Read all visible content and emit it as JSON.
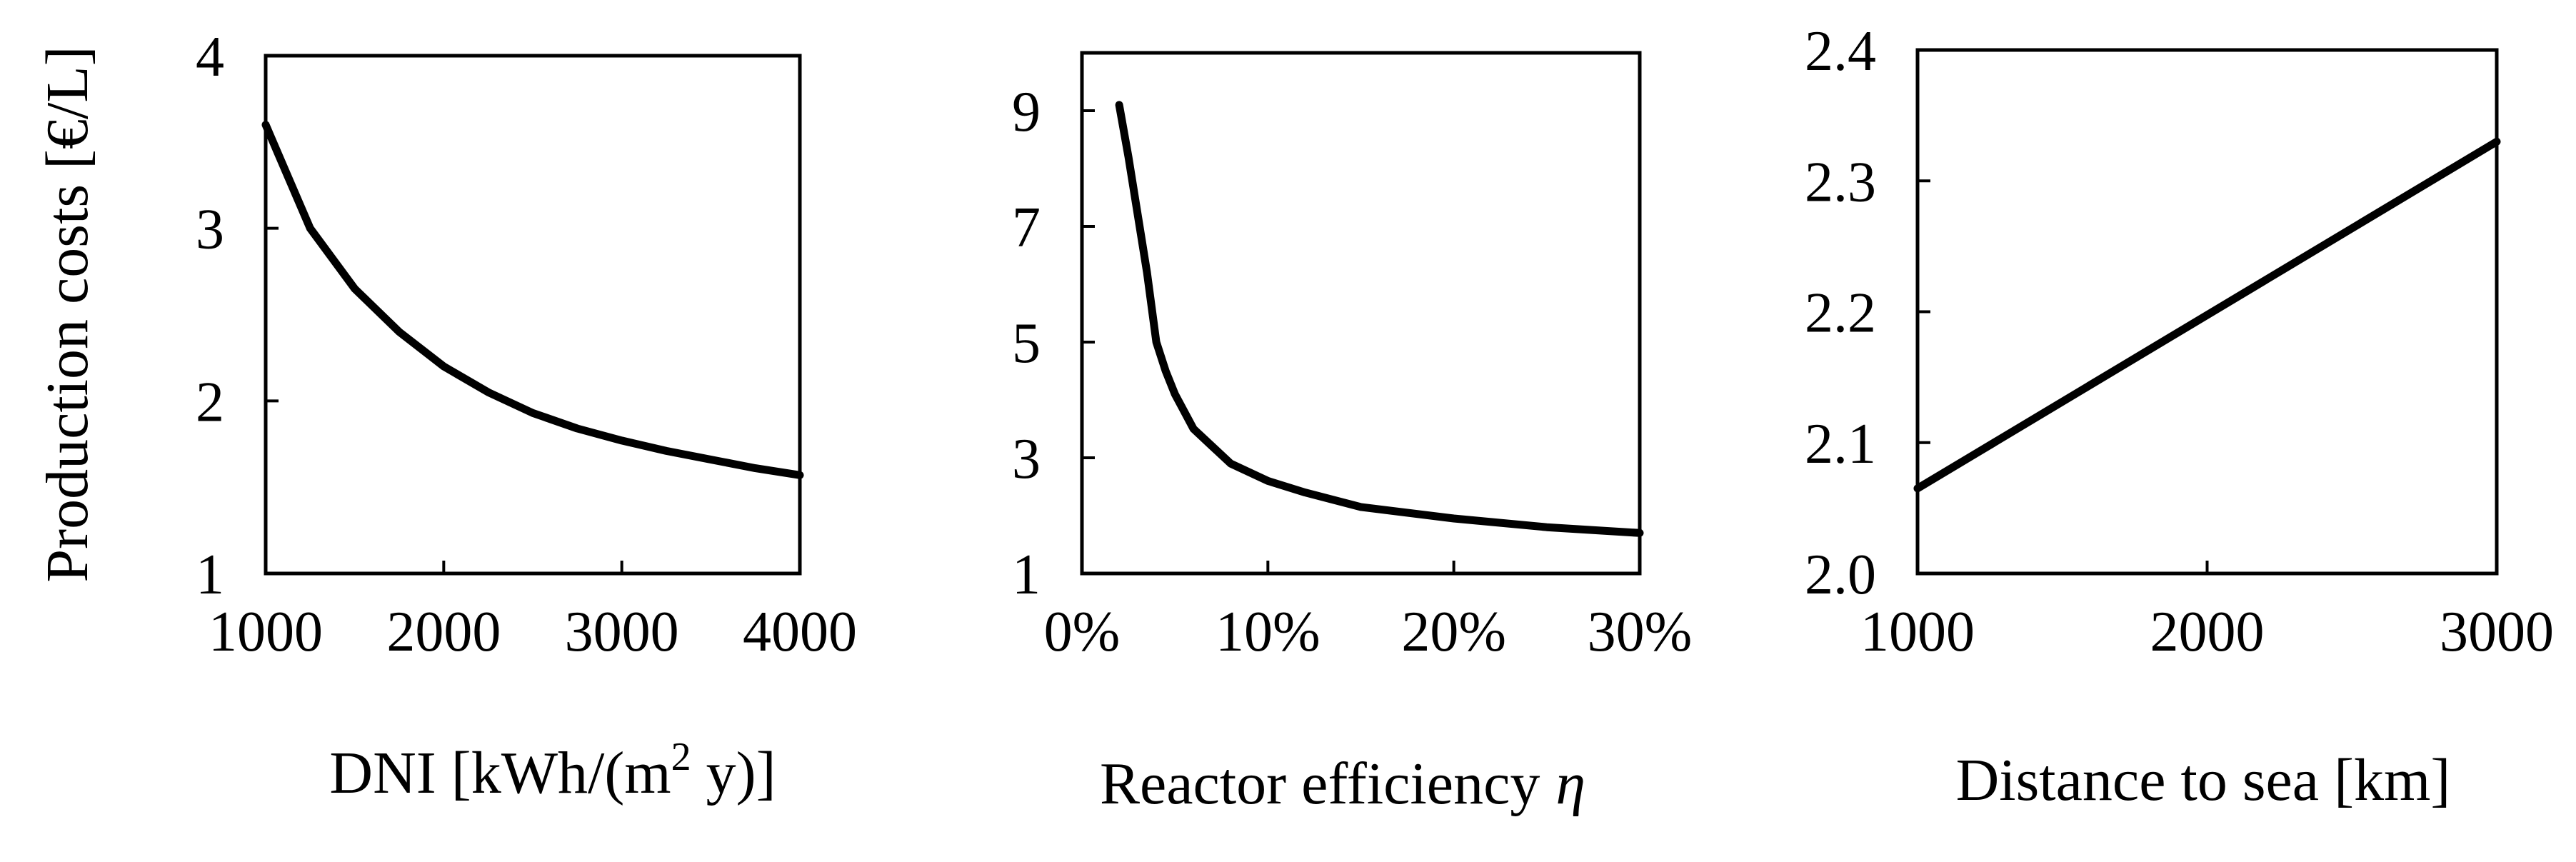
{
  "chart_data": [
    {
      "type": "line",
      "xlabel_parts": [
        "DNI [kWh/(m",
        "2",
        " y)]"
      ],
      "ylabel": "Production costs [€/L]",
      "xlim": [
        1000,
        4000
      ],
      "ylim": [
        1,
        4
      ],
      "xticks": [
        1000,
        2000,
        3000,
        4000
      ],
      "xtick_labels": [
        "1000",
        "2000",
        "3000",
        "4000"
      ],
      "yticks": [
        1,
        2,
        3,
        4
      ],
      "ytick_labels": [
        "1",
        "2",
        "3",
        "4"
      ],
      "grid": false,
      "x": [
        1000,
        1250,
        1500,
        1750,
        2000,
        2250,
        2500,
        2750,
        3000,
        3250,
        3500,
        3750,
        4000
      ],
      "y": [
        3.6,
        3.0,
        2.65,
        2.4,
        2.2,
        2.05,
        1.93,
        1.84,
        1.77,
        1.71,
        1.66,
        1.61,
        1.57
      ]
    },
    {
      "type": "line",
      "xlabel": "Reactor efficiency",
      "xlabel_symbol": "η",
      "xlim": [
        0,
        30
      ],
      "ylim": [
        1,
        10
      ],
      "xticks": [
        0,
        10,
        20,
        30
      ],
      "xtick_labels": [
        "0%",
        "10%",
        "20%",
        "30%"
      ],
      "yticks": [
        1,
        3,
        5,
        7,
        9
      ],
      "ytick_labels": [
        "1",
        "3",
        "5",
        "7",
        "9"
      ],
      "grid": false,
      "x": [
        2,
        2.5,
        3,
        3.5,
        4,
        4.5,
        5,
        6,
        7,
        8,
        10,
        12,
        15,
        20,
        25,
        30
      ],
      "y": [
        9.1,
        8.2,
        7.2,
        6.2,
        5.0,
        4.5,
        4.1,
        3.5,
        3.2,
        2.9,
        2.6,
        2.4,
        2.15,
        1.95,
        1.8,
        1.7
      ]
    },
    {
      "type": "line",
      "xlabel": "Distance to sea [km]",
      "xlim": [
        1000,
        3000
      ],
      "ylim": [
        2.0,
        2.4
      ],
      "xticks": [
        1000,
        2000,
        3000
      ],
      "xtick_labels": [
        "1000",
        "2000",
        "3000"
      ],
      "yticks": [
        2.0,
        2.1,
        2.2,
        2.3,
        2.4
      ],
      "ytick_labels": [
        "2.0",
        "2.1",
        "2.2",
        "2.3",
        "2.4"
      ],
      "grid": false,
      "x": [
        1000,
        3000
      ],
      "y": [
        2.065,
        2.33
      ]
    }
  ]
}
